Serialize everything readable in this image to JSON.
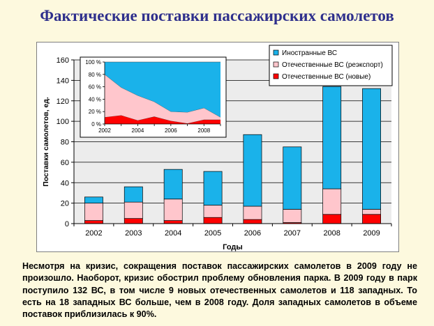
{
  "page": {
    "title": "Фактические поставки пассажирских самолетов",
    "description": "Несмотря на кризис, сокращения поставок пассажирских самолетов в 2009 году не произошло. Наоборот, кризис обострил проблему обновления парка. В 2009 году в парк поступило 132 ВС, в том числе 9 новых отечественных самолетов и 118 западных. То есть на 18 западных ВС больше, чем в 2008 году. Доля западных самолетов в объеме поставок приблизилась к 90%."
  },
  "colors": {
    "foreign": "#1ab2ea",
    "domestic_reexport": "#ffc6cc",
    "domestic_new": "#ff0000",
    "plot_bg": "#ececec",
    "title": "#2e2f8c",
    "page_bg": "#fdf9de"
  },
  "chart_data": [
    {
      "type": "bar",
      "stacked": true,
      "xlabel": "Годы",
      "ylabel": "Поставки самолетов, ед.",
      "ylim": [
        0,
        160
      ],
      "yticks": [
        0,
        20,
        40,
        60,
        80,
        100,
        120,
        140,
        160
      ],
      "grid": true,
      "legend_position": "top-right",
      "categories": [
        "2002",
        "2003",
        "2004",
        "2005",
        "2006",
        "2007",
        "2008",
        "2009"
      ],
      "series": [
        {
          "name": "Отечественные ВС (новые)",
          "color": "#ff0000",
          "values": [
            3,
            5,
            3,
            6,
            4,
            1,
            9,
            9
          ]
        },
        {
          "name": "Отечественные ВС (реэкспорт)",
          "color": "#ffc6cc",
          "values": [
            17,
            16,
            21,
            12,
            13,
            13,
            25,
            5
          ]
        },
        {
          "name": "Иностранные ВС",
          "color": "#1ab2ea",
          "values": [
            6,
            15,
            29,
            33,
            70,
            61,
            100,
            118
          ]
        }
      ],
      "legend_order": [
        "Иностранные ВС",
        "Отечественные ВС (реэкспорт)",
        "Отечественные ВС (новые)"
      ]
    },
    {
      "type": "area",
      "stacked": true,
      "percent": true,
      "inset": true,
      "ylim": [
        0,
        100
      ],
      "yticks": [
        "0 %",
        "20 %",
        "40 %",
        "60 %",
        "80 %",
        "100 %"
      ],
      "x": [
        "2002",
        "2003",
        "2004",
        "2005",
        "2006",
        "2007",
        "2008",
        "2009"
      ],
      "x_tick_labels": [
        "2002",
        "2004",
        "2006",
        "2008"
      ],
      "series": [
        {
          "name": "Отечественные ВС (новые)",
          "color": "#ff0000",
          "values": [
            11,
            14,
            6,
            12,
            5,
            1,
            7,
            7
          ]
        },
        {
          "name": "Отечественные ВС (реэкспорт)",
          "color": "#ffc6cc",
          "values": [
            69,
            45,
            40,
            24,
            15,
            18,
            19,
            4
          ]
        },
        {
          "name": "Иностранные ВС",
          "color": "#1ab2ea",
          "values": [
            20,
            41,
            54,
            64,
            80,
            81,
            74,
            89
          ]
        }
      ]
    }
  ]
}
